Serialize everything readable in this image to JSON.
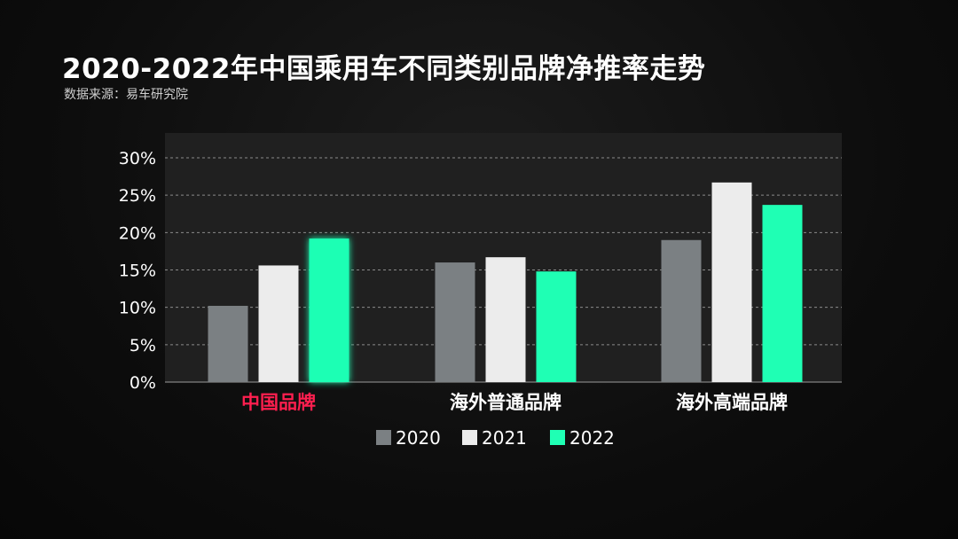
{
  "title": "2020-2022年中国乘用车不同类别品牌净推率走势",
  "source": "数据来源：易车研究院",
  "chart_data": {
    "type": "bar",
    "categories": [
      "中国品牌",
      "海外普通品牌",
      "海外高端品牌"
    ],
    "series": [
      {
        "name": "2020",
        "values": [
          10.2,
          16.0,
          19.0
        ],
        "color": "#7b8083"
      },
      {
        "name": "2021",
        "values": [
          15.6,
          16.7,
          26.7
        ],
        "color": "#ececec"
      },
      {
        "name": "2022",
        "values": [
          19.2,
          14.8,
          23.7
        ],
        "color": "#1fffb4"
      }
    ],
    "ylim": [
      0,
      30
    ],
    "yticks": [
      "0%",
      "5%",
      "10%",
      "15%",
      "20%",
      "25%",
      "30%"
    ],
    "ytick_values": [
      0,
      5,
      10,
      15,
      20,
      25,
      30
    ],
    "highlight_category_color": "#ff1f4f",
    "legend_position": "bottom",
    "grid": true
  }
}
